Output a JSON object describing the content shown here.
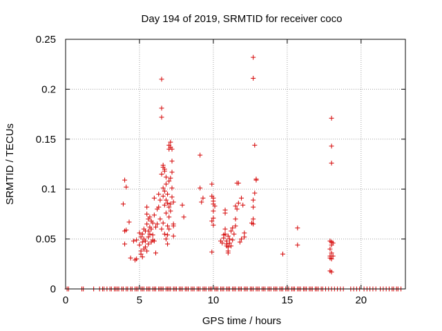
{
  "chart_data": {
    "type": "scatter",
    "title": "Day 194 of 2019, SRMTID for receiver coco",
    "xlabel": "GPS time / hours",
    "ylabel": "SRMTID / TECUs",
    "xlim": [
      0,
      23
    ],
    "ylim": [
      0,
      0.25
    ],
    "xticks": [
      0,
      5,
      10,
      15,
      20
    ],
    "xtick_labels": [
      "0",
      "5",
      "10",
      "15",
      "20"
    ],
    "yticks": [
      0,
      0.05,
      0.1,
      0.15,
      0.2,
      0.25
    ],
    "ytick_labels": [
      "0",
      "0.05",
      "0.1",
      "0.15",
      "0.2",
      "0.25"
    ],
    "grid": true,
    "marker": "+",
    "series": [
      {
        "name": "SRMTID",
        "color": "#d40000",
        "points": [
          [
            0.1,
            0
          ],
          [
            0.2,
            0
          ],
          [
            1.1,
            0
          ],
          [
            1.2,
            0
          ],
          [
            1.9,
            0
          ],
          [
            2.3,
            0
          ],
          [
            2.5,
            0
          ],
          [
            2.6,
            0
          ],
          [
            2.8,
            0
          ],
          [
            3.0,
            0
          ],
          [
            3.1,
            0
          ],
          [
            3.3,
            0
          ],
          [
            3.4,
            0
          ],
          [
            3.5,
            0
          ],
          [
            3.6,
            0
          ],
          [
            3.8,
            0
          ],
          [
            3.9,
            0
          ],
          [
            4.1,
            0
          ],
          [
            4.2,
            0
          ],
          [
            4.4,
            0
          ],
          [
            4.5,
            0
          ],
          [
            4.7,
            0
          ],
          [
            4.8,
            0
          ],
          [
            4.9,
            0
          ],
          [
            5.1,
            0
          ],
          [
            5.2,
            0
          ],
          [
            5.3,
            0
          ],
          [
            5.5,
            0
          ],
          [
            5.6,
            0
          ],
          [
            5.7,
            0
          ],
          [
            5.9,
            0
          ],
          [
            6.0,
            0
          ],
          [
            6.1,
            0
          ],
          [
            6.3,
            0
          ],
          [
            6.4,
            0
          ],
          [
            6.5,
            0
          ],
          [
            6.6,
            0
          ],
          [
            6.8,
            0
          ],
          [
            6.9,
            0
          ],
          [
            7.0,
            0
          ],
          [
            7.1,
            0
          ],
          [
            7.3,
            0
          ],
          [
            7.4,
            0
          ],
          [
            7.5,
            0
          ],
          [
            7.7,
            0
          ],
          [
            7.8,
            0
          ],
          [
            7.9,
            0
          ],
          [
            8.1,
            0
          ],
          [
            8.2,
            0
          ],
          [
            8.3,
            0
          ],
          [
            8.5,
            0
          ],
          [
            8.6,
            0
          ],
          [
            8.7,
            0
          ],
          [
            8.9,
            0
          ],
          [
            9.0,
            0
          ],
          [
            9.1,
            0
          ],
          [
            9.3,
            0
          ],
          [
            9.4,
            0
          ],
          [
            9.5,
            0
          ],
          [
            9.7,
            0
          ],
          [
            9.8,
            0
          ],
          [
            9.9,
            0
          ],
          [
            10.1,
            0
          ],
          [
            10.2,
            0
          ],
          [
            10.3,
            0
          ],
          [
            10.5,
            0
          ],
          [
            10.6,
            0
          ],
          [
            10.7,
            0
          ],
          [
            10.9,
            0
          ],
          [
            11.0,
            0
          ],
          [
            11.1,
            0
          ],
          [
            11.3,
            0
          ],
          [
            11.4,
            0
          ],
          [
            11.5,
            0
          ],
          [
            11.7,
            0
          ],
          [
            11.8,
            0
          ],
          [
            11.9,
            0
          ],
          [
            12.1,
            0
          ],
          [
            12.2,
            0
          ],
          [
            12.3,
            0
          ],
          [
            12.5,
            0
          ],
          [
            12.6,
            0
          ],
          [
            12.7,
            0
          ],
          [
            12.9,
            0
          ],
          [
            13.0,
            0
          ],
          [
            13.1,
            0
          ],
          [
            13.3,
            0
          ],
          [
            13.4,
            0
          ],
          [
            13.5,
            0
          ],
          [
            13.7,
            0
          ],
          [
            13.8,
            0
          ],
          [
            13.9,
            0
          ],
          [
            14.1,
            0
          ],
          [
            14.2,
            0
          ],
          [
            14.3,
            0
          ],
          [
            14.5,
            0
          ],
          [
            14.6,
            0
          ],
          [
            14.7,
            0
          ],
          [
            14.9,
            0
          ],
          [
            15.0,
            0
          ],
          [
            15.1,
            0
          ],
          [
            15.3,
            0
          ],
          [
            15.4,
            0
          ],
          [
            15.5,
            0
          ],
          [
            15.7,
            0
          ],
          [
            15.8,
            0
          ],
          [
            15.9,
            0
          ],
          [
            16.1,
            0
          ],
          [
            16.2,
            0
          ],
          [
            16.3,
            0
          ],
          [
            16.5,
            0
          ],
          [
            16.6,
            0
          ],
          [
            16.7,
            0
          ],
          [
            16.9,
            0
          ],
          [
            17.0,
            0
          ],
          [
            17.1,
            0
          ],
          [
            17.3,
            0
          ],
          [
            17.4,
            0
          ],
          [
            17.6,
            0
          ],
          [
            17.8,
            0
          ],
          [
            18.0,
            0
          ],
          [
            18.2,
            0
          ],
          [
            18.4,
            0
          ],
          [
            18.6,
            0
          ],
          [
            18.8,
            0
          ],
          [
            19.3,
            0
          ],
          [
            19.5,
            0
          ],
          [
            19.7,
            0
          ],
          [
            19.9,
            0
          ],
          [
            20.2,
            0
          ],
          [
            20.4,
            0
          ],
          [
            20.6,
            0
          ],
          [
            20.8,
            0
          ],
          [
            21.0,
            0
          ],
          [
            21.3,
            0
          ],
          [
            21.5,
            0
          ],
          [
            21.7,
            0
          ],
          [
            21.9,
            0
          ],
          [
            22.1,
            0
          ],
          [
            22.2,
            0
          ],
          [
            22.4,
            0
          ],
          [
            22.5,
            0
          ],
          [
            22.7,
            0
          ],
          [
            4.0,
            0.109
          ],
          [
            4.1,
            0.102
          ],
          [
            3.9,
            0.085
          ],
          [
            4.0,
            0.058
          ],
          [
            4.1,
            0.059
          ],
          [
            4.0,
            0.045
          ],
          [
            4.3,
            0.067
          ],
          [
            4.6,
            0.048
          ],
          [
            4.8,
            0.049
          ],
          [
            4.4,
            0.031
          ],
          [
            4.7,
            0.029
          ],
          [
            4.8,
            0.03
          ],
          [
            5.0,
            0.056
          ],
          [
            5.0,
            0.044
          ],
          [
            5.1,
            0.052
          ],
          [
            5.1,
            0.038
          ],
          [
            5.2,
            0.047
          ],
          [
            5.2,
            0.032
          ],
          [
            5.3,
            0.05
          ],
          [
            5.3,
            0.06
          ],
          [
            5.4,
            0.058
          ],
          [
            5.4,
            0.042
          ],
          [
            5.5,
            0.075
          ],
          [
            5.5,
            0.082
          ],
          [
            5.5,
            0.065
          ],
          [
            5.6,
            0.07
          ],
          [
            5.6,
            0.052
          ],
          [
            5.6,
            0.045
          ],
          [
            5.7,
            0.072
          ],
          [
            5.7,
            0.062
          ],
          [
            5.7,
            0.055
          ],
          [
            5.8,
            0.068
          ],
          [
            5.8,
            0.06
          ],
          [
            5.8,
            0.047
          ],
          [
            5.9,
            0.066
          ],
          [
            5.9,
            0.054
          ],
          [
            5.9,
            0.049
          ],
          [
            6.0,
            0.074
          ],
          [
            6.0,
            0.091
          ],
          [
            6.0,
            0.048
          ],
          [
            6.1,
            0.036
          ],
          [
            6.1,
            0.062
          ],
          [
            6.2,
            0.065
          ],
          [
            6.2,
            0.08
          ],
          [
            5.1,
            0.035
          ],
          [
            5.3,
            0.04
          ],
          [
            5.4,
            0.048
          ],
          [
            5.2,
            0.055
          ],
          [
            5.6,
            0.058
          ],
          [
            5.5,
            0.038
          ],
          [
            6.3,
            0.095
          ],
          [
            6.3,
            0.082
          ],
          [
            6.4,
            0.07
          ],
          [
            6.4,
            0.089
          ],
          [
            6.5,
            0.21
          ],
          [
            6.5,
            0.181
          ],
          [
            6.5,
            0.172
          ],
          [
            6.5,
            0.115
          ],
          [
            6.6,
            0.124
          ],
          [
            6.6,
            0.122
          ],
          [
            6.6,
            0.101
          ],
          [
            6.6,
            0.093
          ],
          [
            6.7,
            0.12
          ],
          [
            6.7,
            0.118
          ],
          [
            6.7,
            0.098
          ],
          [
            6.7,
            0.084
          ],
          [
            6.8,
            0.112
          ],
          [
            6.8,
            0.105
          ],
          [
            6.8,
            0.089
          ],
          [
            6.8,
            0.076
          ],
          [
            6.9,
            0.095
          ],
          [
            6.9,
            0.086
          ],
          [
            6.9,
            0.063
          ],
          [
            6.9,
            0.054
          ],
          [
            7.0,
            0.144
          ],
          [
            7.0,
            0.14
          ],
          [
            7.0,
            0.108
          ],
          [
            7.0,
            0.082
          ],
          [
            7.0,
            0.072
          ],
          [
            7.0,
            0.06
          ],
          [
            7.1,
            0.147
          ],
          [
            7.1,
            0.142
          ],
          [
            7.1,
            0.111
          ],
          [
            7.1,
            0.085
          ],
          [
            7.1,
            0.078
          ],
          [
            7.2,
            0.14
          ],
          [
            7.2,
            0.128
          ],
          [
            7.2,
            0.117
          ],
          [
            7.2,
            0.101
          ],
          [
            7.2,
            0.092
          ],
          [
            7.3,
            0.087
          ],
          [
            7.3,
            0.065
          ],
          [
            7.3,
            0.063
          ],
          [
            7.3,
            0.053
          ],
          [
            6.5,
            0.06
          ],
          [
            6.6,
            0.066
          ],
          [
            6.8,
            0.05
          ],
          [
            6.9,
            0.045
          ],
          [
            6.7,
            0.055
          ],
          [
            7.9,
            0.084
          ],
          [
            8.0,
            0.072
          ],
          [
            9.1,
            0.134
          ],
          [
            9.1,
            0.101
          ],
          [
            9.3,
            0.091
          ],
          [
            9.2,
            0.087
          ],
          [
            9.9,
            0.105
          ],
          [
            9.9,
            0.093
          ],
          [
            10.0,
            0.091
          ],
          [
            10.0,
            0.088
          ],
          [
            10.0,
            0.085
          ],
          [
            10.0,
            0.078
          ],
          [
            10.1,
            0.083
          ],
          [
            10.0,
            0.071
          ],
          [
            9.9,
            0.068
          ],
          [
            10.0,
            0.064
          ],
          [
            9.9,
            0.037
          ],
          [
            10.5,
            0.048
          ],
          [
            10.6,
            0.046
          ],
          [
            10.7,
            0.054
          ],
          [
            10.7,
            0.051
          ],
          [
            10.8,
            0.055
          ],
          [
            10.8,
            0.06
          ],
          [
            10.8,
            0.079
          ],
          [
            10.8,
            0.076
          ],
          [
            10.9,
            0.045
          ],
          [
            10.9,
            0.048
          ],
          [
            11.0,
            0.038
          ],
          [
            11.0,
            0.042
          ],
          [
            11.0,
            0.053
          ],
          [
            11.1,
            0.05
          ],
          [
            11.1,
            0.046
          ],
          [
            11.2,
            0.058
          ],
          [
            11.2,
            0.043
          ],
          [
            11.3,
            0.061
          ],
          [
            11.3,
            0.049
          ],
          [
            11.4,
            0.055
          ],
          [
            11.5,
            0.07
          ],
          [
            11.5,
            0.063
          ],
          [
            11.5,
            0.083
          ],
          [
            11.6,
            0.106
          ],
          [
            11.6,
            0.08
          ],
          [
            11.7,
            0.086
          ],
          [
            11.7,
            0.106
          ],
          [
            11.8,
            0.047
          ],
          [
            11.9,
            0.091
          ],
          [
            11.9,
            0.05
          ],
          [
            12.0,
            0.084
          ],
          [
            12.1,
            0.056
          ],
          [
            12.1,
            0.052
          ],
          [
            10.9,
            0.043
          ],
          [
            11.0,
            0.036
          ],
          [
            12.7,
            0.232
          ],
          [
            12.7,
            0.211
          ],
          [
            12.8,
            0.144
          ],
          [
            12.9,
            0.109
          ],
          [
            12.9,
            0.11
          ],
          [
            12.8,
            0.096
          ],
          [
            12.7,
            0.089
          ],
          [
            12.7,
            0.082
          ],
          [
            12.7,
            0.07
          ],
          [
            12.6,
            0.066
          ],
          [
            12.7,
            0.065
          ],
          [
            14.7,
            0.035
          ],
          [
            15.7,
            0.061
          ],
          [
            15.7,
            0.044
          ],
          [
            18.0,
            0.171
          ],
          [
            18.0,
            0.143
          ],
          [
            18.0,
            0.126
          ],
          [
            17.9,
            0.048
          ],
          [
            18.0,
            0.047
          ],
          [
            18.0,
            0.044
          ],
          [
            17.9,
            0.04
          ],
          [
            18.0,
            0.036
          ],
          [
            17.9,
            0.033
          ],
          [
            18.0,
            0.03
          ],
          [
            17.9,
            0.031
          ],
          [
            17.9,
            0.018
          ],
          [
            18.0,
            0.017
          ],
          [
            18.1,
            0.046
          ],
          [
            18.1,
            0.033
          ]
        ]
      }
    ]
  }
}
